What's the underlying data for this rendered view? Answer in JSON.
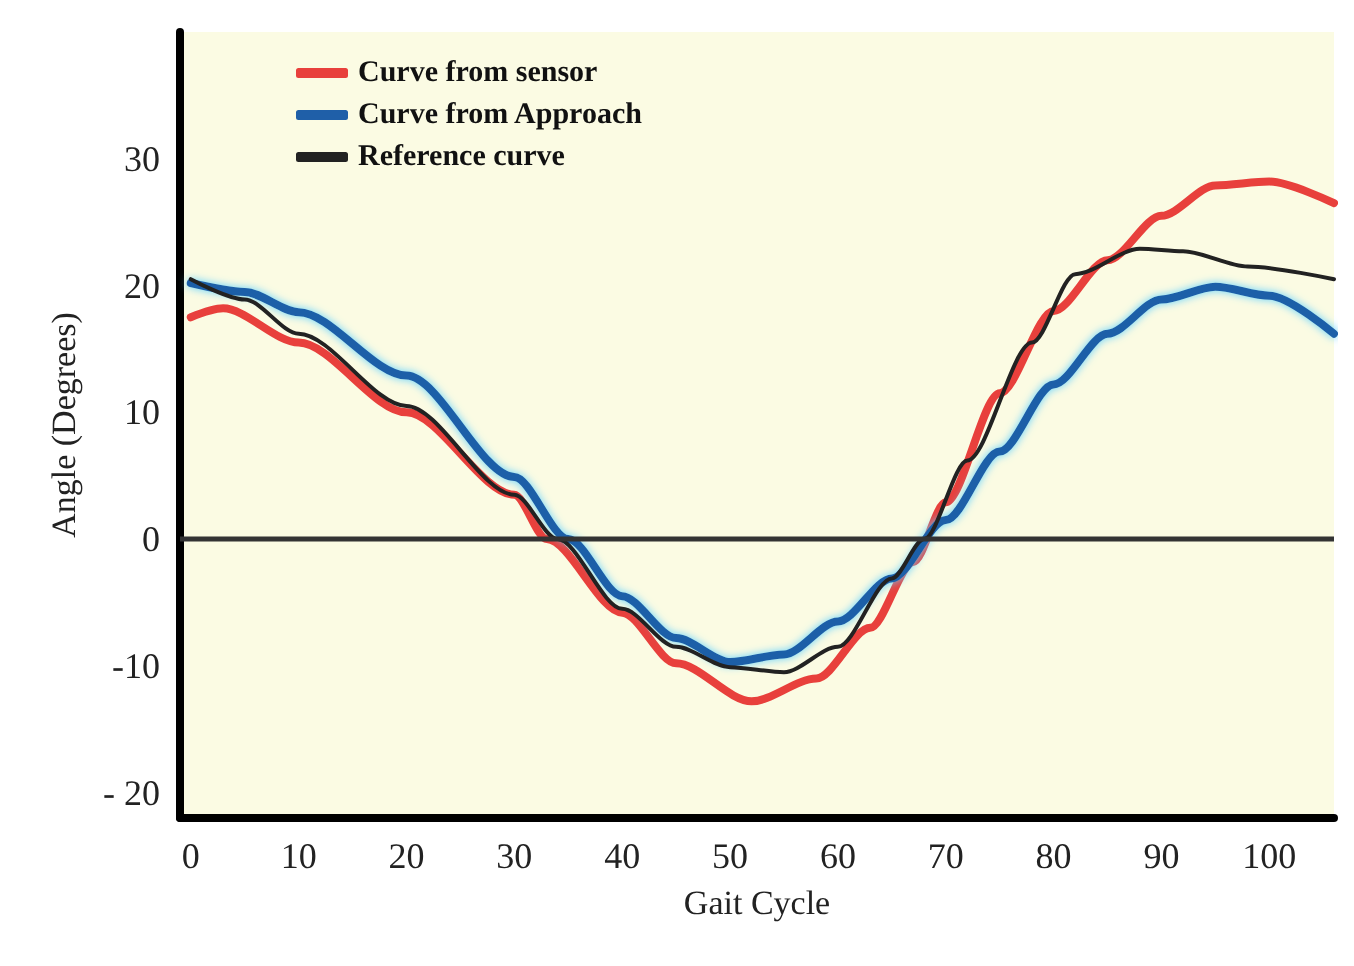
{
  "chart_data": {
    "type": "line",
    "xlabel": "Gait Cycle",
    "ylabel": "Angle (Degrees)",
    "xlim": [
      -1,
      106
    ],
    "xticks": [
      0,
      10,
      20,
      30,
      40,
      50,
      60,
      70,
      80,
      90,
      100
    ],
    "ylim": [
      -22,
      40
    ],
    "yticks": [
      {
        "value": -20,
        "label": "- 20"
      },
      -10,
      0,
      10,
      20,
      30
    ],
    "grid": false,
    "legend": "top left",
    "marker": "none",
    "line_style": "solid",
    "ref_lines": [
      {
        "axis": "y",
        "value": 0,
        "color": "#333333"
      }
    ],
    "series": [
      {
        "name": "Curve from sensor",
        "color": "#e8403c",
        "x": [
          0,
          3,
          10,
          20,
          30,
          33,
          40,
          45,
          52,
          58,
          63,
          67,
          70,
          75,
          80,
          85,
          90,
          95,
          100,
          106
        ],
        "values": [
          17.5,
          18.2,
          15.5,
          10,
          3.5,
          0,
          -5.8,
          -9.8,
          -12.8,
          -11,
          -7,
          -1.8,
          2.9,
          11.5,
          18,
          22,
          25.5,
          27.9,
          28.2,
          26.5
        ]
      },
      {
        "name": "Curve from Approach",
        "color": "#1f5fa8",
        "x": [
          0,
          5,
          10,
          20,
          30,
          35,
          40,
          45,
          50,
          55,
          60,
          65,
          70,
          75,
          80,
          85,
          90,
          95,
          100,
          106
        ],
        "values": [
          20.2,
          19.5,
          17.9,
          12.9,
          4.9,
          0,
          -4.5,
          -7.8,
          -9.7,
          -9.1,
          -6.5,
          -3.1,
          1.5,
          6.9,
          12.2,
          16.2,
          18.9,
          19.9,
          19.2,
          16.2
        ]
      },
      {
        "name": "Reference curve",
        "color": "#222222",
        "x": [
          0,
          5,
          10,
          20,
          30,
          34,
          40,
          45,
          50,
          55,
          60,
          65,
          68,
          72,
          78,
          82,
          88,
          92,
          98,
          106
        ],
        "values": [
          20.5,
          18.9,
          16.2,
          10.5,
          3.5,
          0,
          -5.5,
          -8.5,
          -10.1,
          -10.5,
          -8.5,
          -3.1,
          0,
          6.2,
          15.5,
          20.9,
          22.9,
          22.7,
          21.5,
          20.5
        ]
      }
    ]
  }
}
